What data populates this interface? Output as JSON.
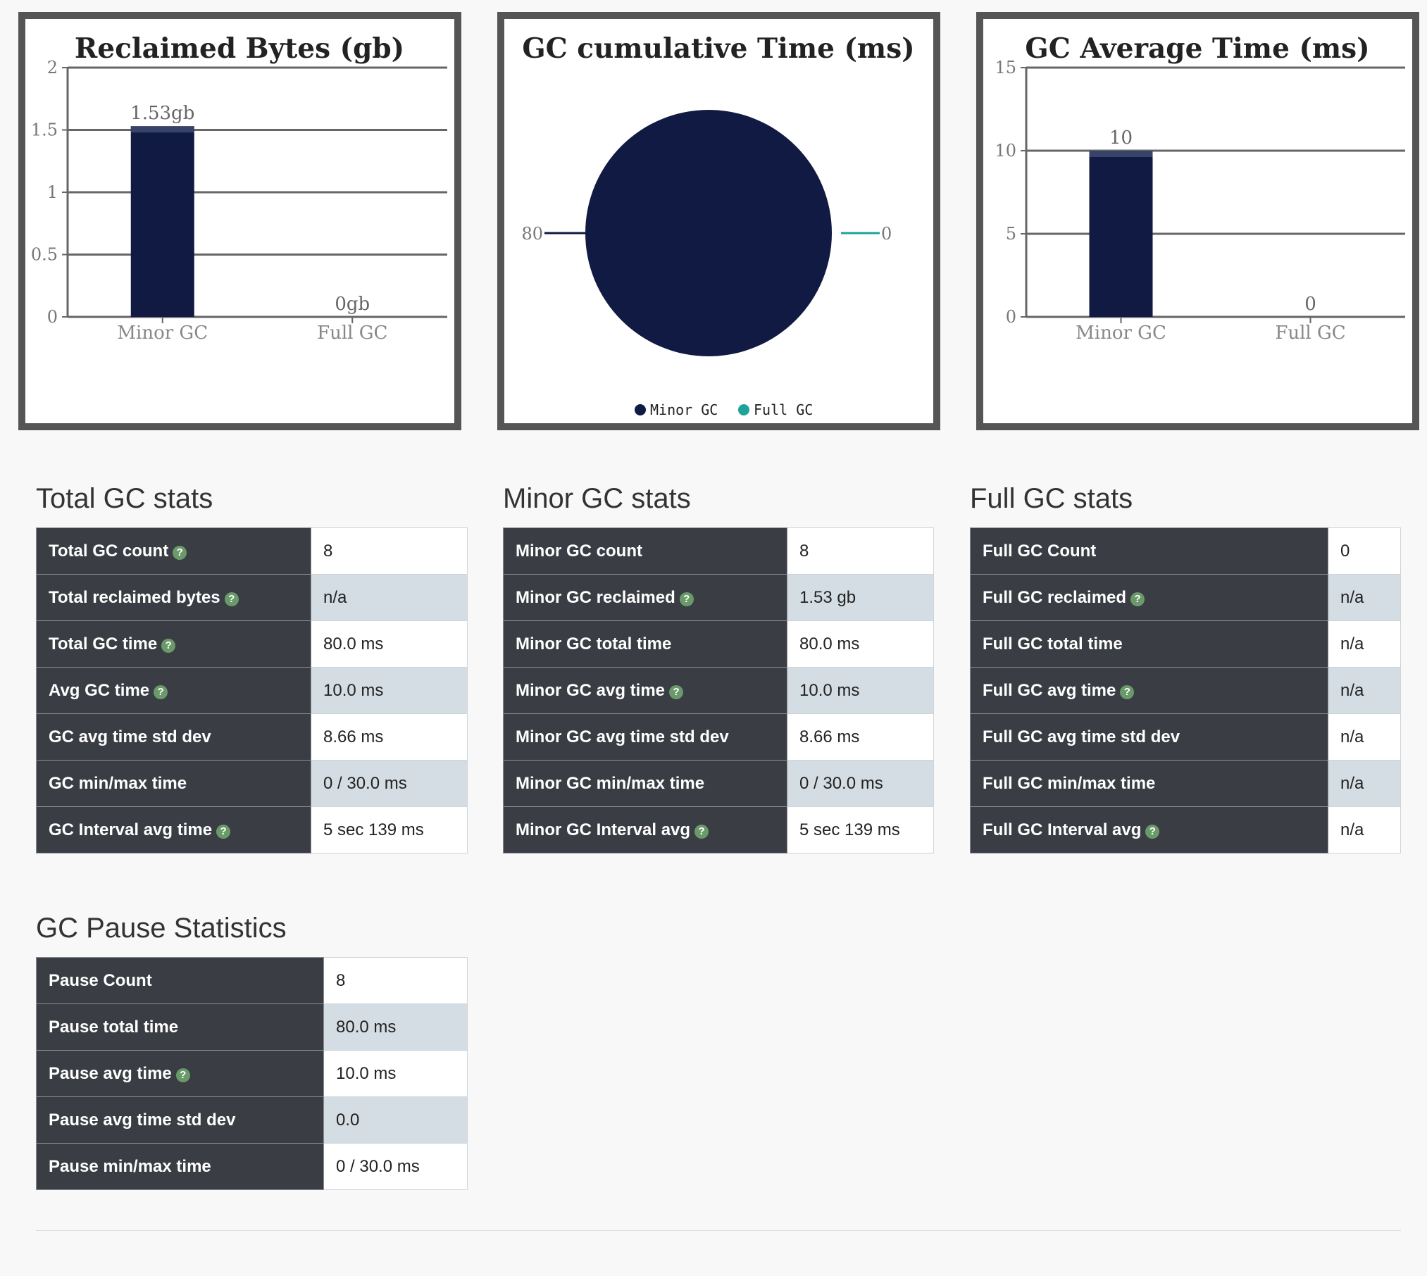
{
  "chart_data": [
    {
      "type": "bar",
      "title": "Reclaimed Bytes (gb)",
      "categories": [
        "Minor GC",
        "Full GC"
      ],
      "values": [
        1.53,
        0
      ],
      "data_labels": [
        "1.53gb",
        "0gb"
      ],
      "yticks": [
        "0",
        "0.5",
        "1",
        "1.5",
        "2"
      ],
      "ylim": [
        0,
        2
      ],
      "grid": true
    },
    {
      "type": "pie",
      "title": "GC cumulative Time (ms)",
      "labels": [
        "Minor GC",
        "Full GC"
      ],
      "values": [
        80,
        0
      ],
      "data_labels": [
        "80",
        "0"
      ],
      "colors": [
        "#101a42",
        "#1ea39a"
      ],
      "legend_position": "bottom"
    },
    {
      "type": "bar",
      "title": "GC Average Time (ms)",
      "categories": [
        "Minor GC",
        "Full GC"
      ],
      "values": [
        10,
        0
      ],
      "data_labels": [
        "10",
        "0"
      ],
      "yticks": [
        "0",
        "5",
        "10",
        "15"
      ],
      "ylim": [
        0,
        15
      ],
      "grid": true
    }
  ],
  "colors": {
    "bar": "#101a42",
    "full_gc": "#1ea39a",
    "header_cell": "#3a3d43",
    "alt_row": "#d4dde3"
  },
  "sections": {
    "total": {
      "title": "Total GC stats",
      "rows": [
        {
          "label": "Total GC count",
          "value": "8",
          "help": "?"
        },
        {
          "label": "Total reclaimed bytes",
          "value": "n/a",
          "help": "?"
        },
        {
          "label": "Total GC time",
          "value": "80.0 ms",
          "help": "?"
        },
        {
          "label": "Avg GC time",
          "value": "10.0 ms",
          "help": "?"
        },
        {
          "label": "GC avg time std dev",
          "value": "8.66 ms"
        },
        {
          "label": "GC min/max time",
          "value": "0 / 30.0 ms"
        },
        {
          "label": "GC Interval avg time",
          "value": "5 sec 139 ms",
          "help": "?"
        }
      ]
    },
    "minor": {
      "title": "Minor GC stats",
      "rows": [
        {
          "label": "Minor GC count",
          "value": "8"
        },
        {
          "label": "Minor GC reclaimed",
          "value": "1.53 gb",
          "help": "?"
        },
        {
          "label": "Minor GC total time",
          "value": "80.0 ms"
        },
        {
          "label": "Minor GC avg time",
          "value": "10.0 ms",
          "help": "?"
        },
        {
          "label": "Minor GC avg time std dev",
          "value": "8.66 ms"
        },
        {
          "label": "Minor GC min/max time",
          "value": "0 / 30.0 ms"
        },
        {
          "label": "Minor GC Interval avg",
          "value": "5 sec 139 ms",
          "help": "?"
        }
      ]
    },
    "full": {
      "title": "Full GC stats",
      "rows": [
        {
          "label": "Full GC Count",
          "value": "0"
        },
        {
          "label": "Full GC reclaimed",
          "value": "n/a",
          "help": "?"
        },
        {
          "label": "Full GC total time",
          "value": "n/a"
        },
        {
          "label": "Full GC avg time",
          "value": "n/a",
          "help": "?"
        },
        {
          "label": "Full GC avg time std dev",
          "value": "n/a"
        },
        {
          "label": "Full GC min/max time",
          "value": "n/a"
        },
        {
          "label": "Full GC Interval avg",
          "value": "n/a",
          "help": "?"
        }
      ]
    },
    "pause": {
      "title": "GC Pause Statistics",
      "rows": [
        {
          "label": "Pause Count",
          "value": "8"
        },
        {
          "label": "Pause total time",
          "value": "80.0 ms"
        },
        {
          "label": "Pause avg time",
          "value": "10.0 ms",
          "help": "?"
        },
        {
          "label": "Pause avg time std dev",
          "value": "0.0"
        },
        {
          "label": "Pause min/max time",
          "value": "0 / 30.0 ms"
        }
      ]
    }
  }
}
